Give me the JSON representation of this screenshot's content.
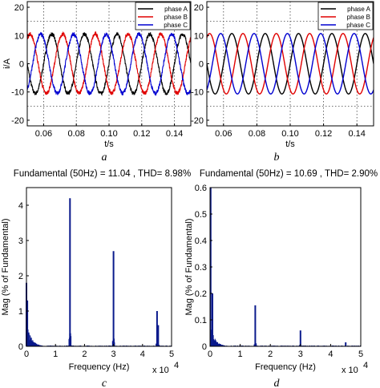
{
  "colors": {
    "phase_a": "#000000",
    "phase_b": "#e00000",
    "phase_c": "#0000d0",
    "spectrum": "#0a1a8c"
  },
  "chart_data": [
    {
      "id": "a",
      "type": "line",
      "panel_label": "a",
      "xlabel": "t/s",
      "ylabel": "i/A",
      "xlim": [
        0.05,
        0.15
      ],
      "ylim": [
        -22,
        22
      ],
      "xticks": [
        "0.06",
        "0.08",
        "0.10",
        "0.12",
        "0.14"
      ],
      "yticks": [
        "20",
        "10",
        "0",
        "-10",
        "-20"
      ],
      "grid": "dotted",
      "legend": "top-right",
      "ref_lines_y": [
        15,
        -15
      ],
      "amplitude": 10.5,
      "frequency_hz": 50,
      "noise": "ripple",
      "series": [
        {
          "name": "phase A",
          "phase_deg": 0
        },
        {
          "name": "phase B",
          "phase_deg": -120
        },
        {
          "name": "phase C",
          "phase_deg": 120
        }
      ]
    },
    {
      "id": "b",
      "type": "line",
      "panel_label": "b",
      "xlabel": "t/s",
      "ylabel": "",
      "xlim": [
        0.05,
        0.15
      ],
      "ylim": [
        -22,
        22
      ],
      "xticks": [
        "0.06",
        "0.08",
        "0.10",
        "0.12",
        "0.14"
      ],
      "yticks": [
        "20",
        "10",
        "0",
        "-10",
        "-20"
      ],
      "grid": "dotted",
      "legend": "top-right",
      "ref_lines_y": [
        15,
        -15
      ],
      "amplitude": 10.7,
      "frequency_hz": 50,
      "noise": "smooth",
      "series": [
        {
          "name": "phase A",
          "phase_deg": 0
        },
        {
          "name": "phase B",
          "phase_deg": -120
        },
        {
          "name": "phase C",
          "phase_deg": 120
        }
      ]
    },
    {
      "id": "c",
      "type": "bar",
      "panel_label": "c",
      "title": "Fundamental (50Hz) = 11.04 , THD= 8.98%",
      "xlabel": "Frequency (Hz)",
      "ylabel": "Mag (% of Fundamental)",
      "xlim": [
        0,
        50000
      ],
      "ylim": [
        0,
        4.5
      ],
      "xticks": [
        "0",
        "1",
        "2",
        "3",
        "4",
        "5"
      ],
      "x_multiplier": "x 10",
      "x_multiplier_exp": "4",
      "yticks": [
        "0",
        "1",
        "2",
        "3",
        "4"
      ],
      "grid": "off",
      "peaks": [
        {
          "x": 0,
          "y": 1.8
        },
        {
          "x": 300,
          "y": 1.3
        },
        {
          "x": 15000,
          "y": 4.2
        },
        {
          "x": 30000,
          "y": 2.7
        },
        {
          "x": 45000,
          "y": 1.0
        },
        {
          "x": 45400,
          "y": 0.6
        }
      ]
    },
    {
      "id": "d",
      "type": "bar",
      "panel_label": "d",
      "title": "Fundamental (50Hz) = 10.69 , THD= 2.90%",
      "xlabel": "Frequency (Hz)",
      "ylabel": "Mag (% of Fundamental)",
      "xlim": [
        0,
        50000
      ],
      "ylim": [
        0,
        0.6
      ],
      "xticks": [
        "0",
        "1",
        "2",
        "3",
        "4",
        "5"
      ],
      "x_multiplier": "x 10",
      "x_multiplier_exp": "4",
      "yticks": [
        "0",
        "0.1",
        "0.2",
        "0.3",
        "0.4",
        "0.5",
        "0.6"
      ],
      "grid": "off",
      "peaks": [
        {
          "x": 200,
          "y": 0.6
        },
        {
          "x": 800,
          "y": 0.2
        },
        {
          "x": 15000,
          "y": 0.155
        },
        {
          "x": 30000,
          "y": 0.06
        },
        {
          "x": 45000,
          "y": 0.015
        }
      ]
    }
  ]
}
